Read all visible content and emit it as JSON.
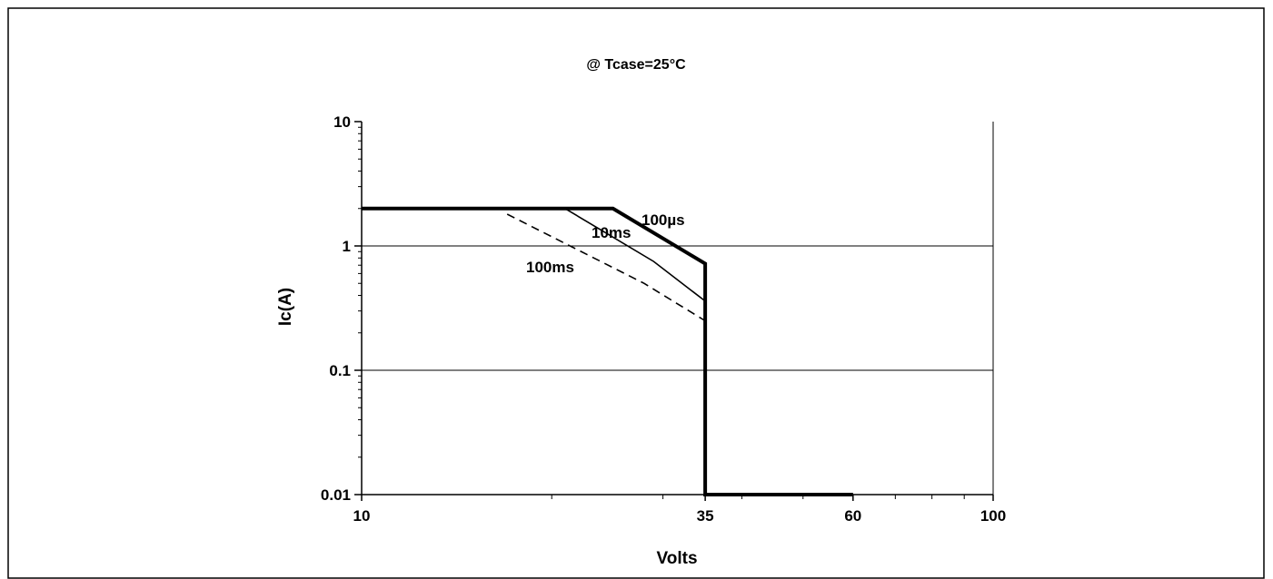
{
  "chart_data": {
    "type": "line",
    "title": "@ Tcase=25°C",
    "xlabel": "Volts",
    "ylabel": "Ic(A)",
    "xscale": "log",
    "yscale": "log",
    "xlim": [
      10,
      100
    ],
    "ylim": [
      0.01,
      10
    ],
    "x_ticks": [
      "10",
      "35",
      "60",
      "100"
    ],
    "y_ticks": [
      "10",
      "1",
      "0.1",
      "0.01"
    ],
    "grid": "horizontal major gridlines",
    "legend": "inline labels",
    "series": [
      {
        "name": "100µs",
        "style": "thick-solid",
        "x": [
          10,
          25,
          35,
          35,
          60
        ],
        "y": [
          2,
          2,
          0.72,
          0.01,
          0.01
        ]
      },
      {
        "name": "10ms",
        "style": "thin-solid",
        "x": [
          21,
          29,
          35
        ],
        "y": [
          2,
          0.75,
          0.36
        ]
      },
      {
        "name": "100ms",
        "style": "dashed",
        "x": [
          17,
          28,
          35
        ],
        "y": [
          1.8,
          0.5,
          0.25
        ]
      }
    ]
  }
}
